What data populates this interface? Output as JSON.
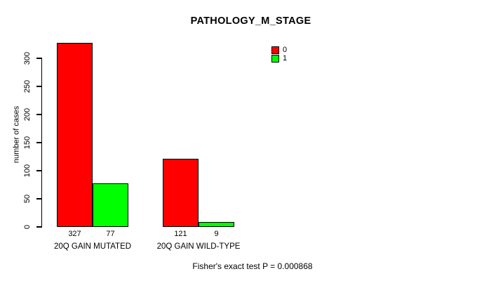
{
  "chart_data": {
    "type": "bar",
    "title": "PATHOLOGY_M_STAGE",
    "ylabel": "number of cases",
    "xlabel": "",
    "categories": [
      "20Q GAIN MUTATED",
      "20Q GAIN WILD-TYPE"
    ],
    "series": [
      {
        "name": "0",
        "color": "#ff0000",
        "values": [
          327,
          121
        ]
      },
      {
        "name": "1",
        "color": "#00ff00",
        "values": [
          77,
          9
        ]
      }
    ],
    "bar_value_labels": [
      [
        327,
        77
      ],
      [
        121,
        9
      ]
    ],
    "yticks": [
      0,
      50,
      100,
      150,
      200,
      250,
      300
    ],
    "ylim": [
      0,
      327
    ],
    "grid": false,
    "legend_position": "top-right",
    "footnote": "Fisher's exact test P = 0.000868"
  }
}
